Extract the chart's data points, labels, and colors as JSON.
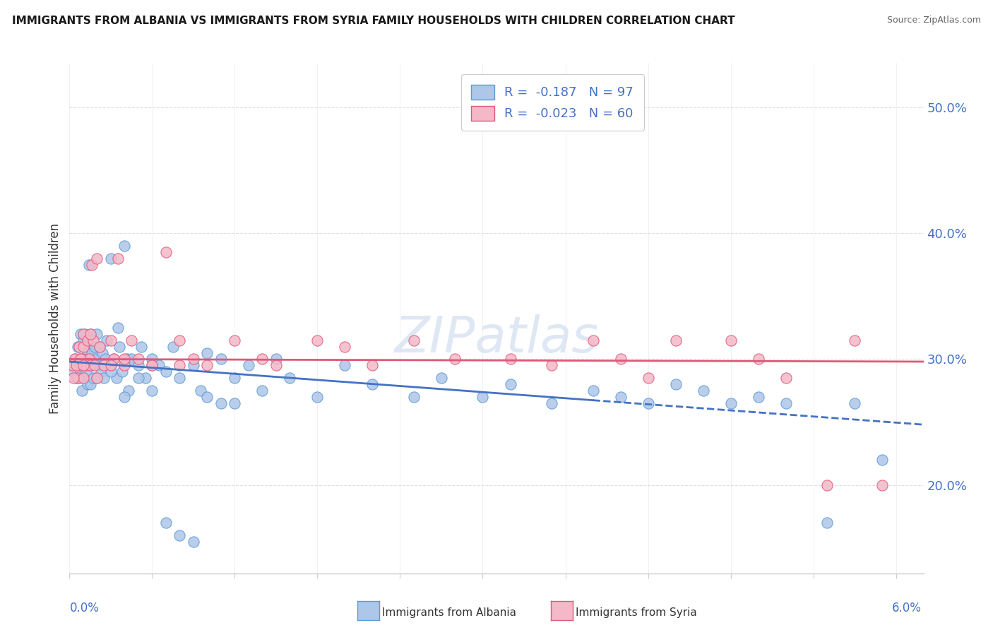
{
  "title": "IMMIGRANTS FROM ALBANIA VS IMMIGRANTS FROM SYRIA FAMILY HOUSEHOLDS WITH CHILDREN CORRELATION CHART",
  "source": "Source: ZipAtlas.com",
  "ylabel": "Family Households with Children",
  "legend_albania": "R =  -0.187   N = 97",
  "legend_syria": "R =  -0.023   N = 60",
  "legend_albania_label": "Immigrants from Albania",
  "legend_syria_label": "Immigrants from Syria",
  "albania_face_color": "#aec6e8",
  "albania_edge_color": "#5b9bd5",
  "syria_face_color": "#f4b8c8",
  "syria_edge_color": "#e05878",
  "albania_line_color": "#4472c4",
  "syria_line_color": "#e05878",
  "watermark_color": "#d8e4f0",
  "background_color": "#ffffff",
  "grid_color": "#d8d8d8",
  "ytick_color": "#4472c4",
  "xlabel_color": "#4472c4",
  "xlim": [
    0.0,
    0.062
  ],
  "ylim": [
    0.13,
    0.535
  ],
  "ytick_positions": [
    0.2,
    0.3,
    0.4,
    0.5
  ],
  "ytick_labels": [
    "20.0%",
    "30.0%",
    "40.0%",
    "50.0%"
  ],
  "albania_x": [
    0.0002,
    0.0003,
    0.0004,
    0.0005,
    0.0006,
    0.0006,
    0.0007,
    0.0007,
    0.0008,
    0.0008,
    0.0009,
    0.0009,
    0.001,
    0.001,
    0.001,
    0.0011,
    0.0011,
    0.0012,
    0.0012,
    0.0013,
    0.0013,
    0.0014,
    0.0014,
    0.0015,
    0.0015,
    0.0015,
    0.0016,
    0.0016,
    0.0017,
    0.0018,
    0.0019,
    0.002,
    0.002,
    0.0021,
    0.0022,
    0.0023,
    0.0024,
    0.0025,
    0.0026,
    0.0027,
    0.003,
    0.003,
    0.0032,
    0.0034,
    0.0035,
    0.0036,
    0.0038,
    0.004,
    0.0042,
    0.0043,
    0.0045,
    0.005,
    0.0052,
    0.0055,
    0.006,
    0.0065,
    0.007,
    0.0075,
    0.008,
    0.009,
    0.0095,
    0.01,
    0.011,
    0.012,
    0.013,
    0.014,
    0.015,
    0.016,
    0.018,
    0.02,
    0.022,
    0.025,
    0.027,
    0.03,
    0.032,
    0.035,
    0.038,
    0.04,
    0.042,
    0.044,
    0.046,
    0.048,
    0.05,
    0.052,
    0.055,
    0.057,
    0.059,
    0.003,
    0.004,
    0.005,
    0.006,
    0.007,
    0.008,
    0.009,
    0.01,
    0.011,
    0.012
  ],
  "albania_y": [
    0.295,
    0.29,
    0.3,
    0.285,
    0.31,
    0.295,
    0.3,
    0.285,
    0.29,
    0.32,
    0.295,
    0.275,
    0.3,
    0.285,
    0.315,
    0.295,
    0.32,
    0.31,
    0.29,
    0.305,
    0.28,
    0.3,
    0.375,
    0.295,
    0.32,
    0.28,
    0.295,
    0.305,
    0.285,
    0.31,
    0.3,
    0.285,
    0.32,
    0.295,
    0.31,
    0.29,
    0.305,
    0.285,
    0.3,
    0.315,
    0.38,
    0.295,
    0.3,
    0.285,
    0.325,
    0.31,
    0.29,
    0.39,
    0.3,
    0.275,
    0.3,
    0.295,
    0.31,
    0.285,
    0.3,
    0.295,
    0.29,
    0.31,
    0.285,
    0.295,
    0.275,
    0.305,
    0.3,
    0.285,
    0.295,
    0.275,
    0.3,
    0.285,
    0.27,
    0.295,
    0.28,
    0.27,
    0.285,
    0.27,
    0.28,
    0.265,
    0.275,
    0.27,
    0.265,
    0.28,
    0.275,
    0.265,
    0.27,
    0.265,
    0.17,
    0.265,
    0.22,
    0.29,
    0.27,
    0.285,
    0.275,
    0.17,
    0.16,
    0.155,
    0.27,
    0.265,
    0.265
  ],
  "syria_x": [
    0.0002,
    0.0004,
    0.0006,
    0.0007,
    0.0008,
    0.0009,
    0.001,
    0.001,
    0.001,
    0.0012,
    0.0013,
    0.0014,
    0.0015,
    0.0016,
    0.0017,
    0.0018,
    0.002,
    0.0022,
    0.0025,
    0.003,
    0.0032,
    0.0035,
    0.004,
    0.0045,
    0.005,
    0.006,
    0.007,
    0.008,
    0.009,
    0.01,
    0.012,
    0.014,
    0.015,
    0.018,
    0.02,
    0.022,
    0.025,
    0.028,
    0.032,
    0.035,
    0.038,
    0.04,
    0.042,
    0.044,
    0.048,
    0.05,
    0.052,
    0.055,
    0.057,
    0.059,
    0.0003,
    0.0005,
    0.0008,
    0.001,
    0.0015,
    0.002,
    0.003,
    0.004,
    0.006,
    0.008
  ],
  "syria_y": [
    0.295,
    0.3,
    0.285,
    0.31,
    0.295,
    0.3,
    0.32,
    0.285,
    0.31,
    0.295,
    0.315,
    0.3,
    0.295,
    0.375,
    0.315,
    0.295,
    0.38,
    0.31,
    0.295,
    0.315,
    0.3,
    0.38,
    0.295,
    0.315,
    0.3,
    0.295,
    0.385,
    0.315,
    0.3,
    0.295,
    0.315,
    0.3,
    0.295,
    0.315,
    0.31,
    0.295,
    0.315,
    0.3,
    0.3,
    0.295,
    0.315,
    0.3,
    0.285,
    0.315,
    0.315,
    0.3,
    0.285,
    0.2,
    0.315,
    0.2,
    0.285,
    0.295,
    0.3,
    0.295,
    0.32,
    0.285,
    0.295,
    0.3,
    0.295,
    0.295
  ],
  "trend_alb_x0": 0.0,
  "trend_alb_y0": 0.298,
  "trend_alb_x1": 0.062,
  "trend_alb_y1": 0.248,
  "trend_alb_solid_end": 0.038,
  "trend_syr_x0": 0.0,
  "trend_syr_y0": 0.3,
  "trend_syr_x1": 0.062,
  "trend_syr_y1": 0.298
}
